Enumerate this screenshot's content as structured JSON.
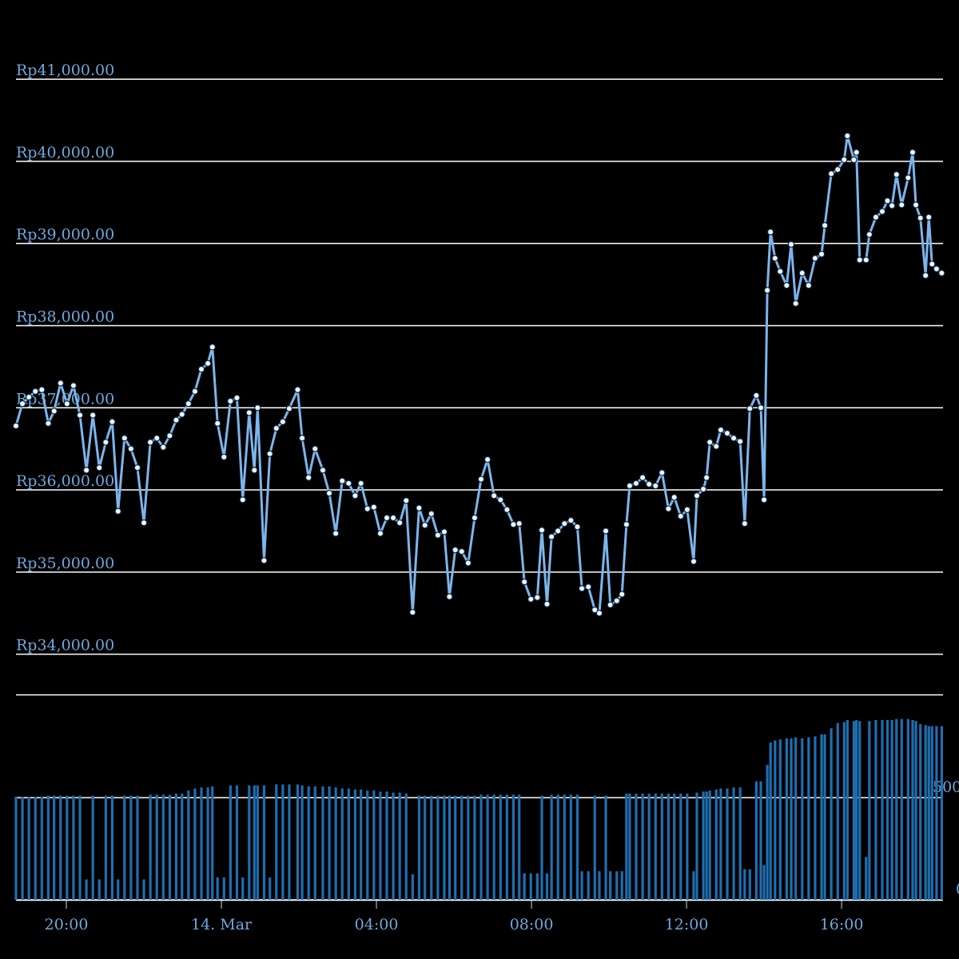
{
  "chart_data": [
    {
      "type": "line",
      "color": "#7cb5ec",
      "x": [
        1122,
        1132,
        1142,
        1152,
        1162,
        1172,
        1181,
        1191,
        1201,
        1211,
        1221,
        1231,
        1241,
        1251,
        1261,
        1271,
        1280,
        1290,
        1300,
        1310,
        1320,
        1330,
        1340,
        1350,
        1360,
        1370,
        1379,
        1389,
        1399,
        1409,
        1419,
        1426,
        1434,
        1444,
        1454,
        1464,
        1473,
        1483,
        1491,
        1496,
        1506,
        1515,
        1525,
        1535,
        1545,
        1558,
        1565,
        1575,
        1585,
        1597,
        1607,
        1617,
        1627,
        1637,
        1647,
        1656,
        1666,
        1676,
        1686,
        1696,
        1706,
        1716,
        1726,
        1736,
        1746,
        1755,
        1765,
        1775,
        1785,
        1793,
        1802,
        1812,
        1822,
        1832,
        1842,
        1852,
        1862,
        1872,
        1882,
        1892,
        1901,
        1909,
        1919,
        1929,
        1936,
        1944,
        1951,
        1961,
        1971,
        1981,
        1991,
        1998,
        2008,
        2018,
        2025,
        2035,
        2042,
        2052,
        2060,
        2067,
        2072,
        2082,
        2092,
        2102,
        2112,
        2122,
        2132,
        2141,
        2151,
        2161,
        2171,
        2176,
        2186,
        2191,
        2196,
        2206,
        2213,
        2223,
        2233,
        2243,
        2250,
        2258,
        2268,
        2275,
        2280,
        2285,
        2290,
        2297,
        2305,
        2315,
        2322,
        2329,
        2339,
        2349,
        2359,
        2369,
        2374,
        2384,
        2394,
        2404,
        2409,
        2419,
        2423,
        2428,
        2438,
        2443,
        2453,
        2463,
        2471,
        2478,
        2485,
        2493,
        2503,
        2510,
        2515,
        2522,
        2530,
        2535,
        2540,
        2547,
        2555
      ],
      "values": [
        36780,
        37050,
        37130,
        37200,
        37220,
        36810,
        36960,
        37300,
        37050,
        37270,
        36910,
        36240,
        36910,
        36270,
        36580,
        36830,
        35740,
        36630,
        36500,
        36270,
        35600,
        36580,
        36630,
        36520,
        36660,
        36850,
        36920,
        37050,
        37200,
        37470,
        37540,
        37740,
        36810,
        36400,
        37080,
        37120,
        35880,
        36940,
        36240,
        37000,
        35140,
        36440,
        36750,
        36830,
        36990,
        37220,
        36630,
        36150,
        36500,
        36240,
        35960,
        35470,
        36110,
        36080,
        35930,
        36080,
        35770,
        35790,
        35470,
        35660,
        35660,
        35600,
        35870,
        34510,
        35780,
        35570,
        35710,
        35450,
        35490,
        34700,
        35270,
        35250,
        35110,
        35660,
        36130,
        36370,
        35930,
        35880,
        35760,
        35580,
        35590,
        34880,
        34670,
        34690,
        35510,
        34610,
        35430,
        35500,
        35590,
        35630,
        35550,
        34800,
        34820,
        34540,
        34500,
        35500,
        34600,
        34650,
        34730,
        35580,
        36050,
        36080,
        36150,
        36070,
        36050,
        36210,
        35770,
        35910,
        35680,
        35760,
        35130,
        35930,
        36010,
        36150,
        36580,
        36530,
        36730,
        36690,
        36630,
        36590,
        35590,
        36990,
        37150,
        37000,
        35880,
        38430,
        39140,
        38820,
        38660,
        38490,
        38990,
        38270,
        38640,
        38490,
        38820,
        38870,
        39220,
        39850,
        39900,
        40020,
        40310,
        40020,
        40110,
        38800,
        38800,
        39110,
        39320,
        39390,
        39520,
        39460,
        39840,
        39470,
        39800,
        40110,
        39470,
        39310,
        38610,
        39320,
        38750,
        38690,
        38640
      ],
      "xlim": [
        1122,
        2557
      ],
      "ylim": [
        33500,
        41400
      ],
      "yticks": [
        {
          "value": 34000,
          "label": "Rp34,000.00"
        },
        {
          "value": 35000,
          "label": "Rp35,000.00"
        },
        {
          "value": 36000,
          "label": "Rp36,000.00"
        },
        {
          "value": 37000,
          "label": "Rp37,000.00"
        },
        {
          "value": 38000,
          "label": "Rp38,000.00"
        },
        {
          "value": 39000,
          "label": "Rp39,000.00"
        },
        {
          "value": 40000,
          "label": "Rp40,000.00"
        },
        {
          "value": 41000,
          "label": "Rp41,000.00"
        }
      ],
      "grid": true
    },
    {
      "type": "bar",
      "color": "#1f6eb0",
      "x": [
        1122,
        1132,
        1142,
        1152,
        1162,
        1172,
        1181,
        1191,
        1201,
        1211,
        1221,
        1231,
        1241,
        1251,
        1261,
        1271,
        1280,
        1290,
        1300,
        1310,
        1320,
        1330,
        1340,
        1350,
        1360,
        1370,
        1379,
        1389,
        1399,
        1409,
        1419,
        1426,
        1434,
        1444,
        1454,
        1464,
        1473,
        1483,
        1491,
        1496,
        1506,
        1515,
        1525,
        1535,
        1545,
        1558,
        1565,
        1575,
        1585,
        1597,
        1607,
        1617,
        1627,
        1637,
        1647,
        1656,
        1666,
        1676,
        1686,
        1696,
        1706,
        1716,
        1726,
        1736,
        1746,
        1755,
        1765,
        1775,
        1785,
        1793,
        1802,
        1812,
        1822,
        1832,
        1842,
        1852,
        1862,
        1872,
        1882,
        1892,
        1901,
        1909,
        1919,
        1929,
        1936,
        1944,
        1951,
        1961,
        1971,
        1981,
        1991,
        1998,
        2008,
        2018,
        2025,
        2035,
        2042,
        2052,
        2060,
        2067,
        2072,
        2082,
        2092,
        2102,
        2112,
        2122,
        2132,
        2141,
        2151,
        2161,
        2171,
        2176,
        2186,
        2191,
        2196,
        2206,
        2213,
        2223,
        2233,
        2243,
        2250,
        2258,
        2268,
        2275,
        2280,
        2285,
        2290,
        2297,
        2305,
        2315,
        2322,
        2329,
        2339,
        2349,
        2359,
        2369,
        2374,
        2384,
        2394,
        2404,
        2409,
        2419,
        2423,
        2428,
        2438,
        2443,
        2453,
        2463,
        2471,
        2478,
        2485,
        2493,
        2503,
        2510,
        2515,
        2522,
        2530,
        2535,
        2540,
        2547,
        2555
      ],
      "values": [
        505,
        505,
        505,
        505,
        505,
        510,
        510,
        510,
        510,
        510,
        510,
        100,
        510,
        100,
        510,
        510,
        100,
        510,
        510,
        510,
        100,
        515,
        515,
        515,
        515,
        520,
        520,
        535,
        545,
        550,
        550,
        555,
        110,
        110,
        560,
        560,
        110,
        560,
        560,
        560,
        560,
        110,
        565,
        565,
        565,
        565,
        560,
        555,
        555,
        555,
        555,
        550,
        545,
        545,
        540,
        540,
        535,
        535,
        530,
        530,
        525,
        525,
        520,
        125,
        510,
        510,
        510,
        510,
        510,
        510,
        510,
        510,
        510,
        510,
        515,
        515,
        515,
        515,
        515,
        515,
        515,
        130,
        130,
        130,
        510,
        130,
        515,
        515,
        515,
        515,
        515,
        140,
        140,
        510,
        140,
        510,
        140,
        140,
        140,
        520,
        520,
        520,
        520,
        520,
        520,
        520,
        520,
        520,
        520,
        520,
        140,
        525,
        530,
        530,
        535,
        540,
        545,
        545,
        550,
        550,
        150,
        150,
        580,
        580,
        170,
        660,
        770,
        780,
        785,
        790,
        790,
        795,
        790,
        795,
        800,
        810,
        810,
        840,
        865,
        870,
        880,
        875,
        880,
        875,
        210,
        875,
        880,
        880,
        880,
        880,
        885,
        885,
        885,
        880,
        875,
        860,
        855,
        850,
        850,
        850,
        850
      ],
      "xlim": [
        1122,
        2557
      ],
      "ylim": [
        0,
        1005
      ],
      "yticks": [
        0,
        500
      ],
      "xticks": [
        {
          "value": 1200,
          "label": "20:00"
        },
        {
          "value": 1440,
          "label": "14. Mar"
        },
        {
          "value": 1680,
          "label": "04:00"
        },
        {
          "value": 1920,
          "label": "08:00"
        },
        {
          "value": 2160,
          "label": "12:00"
        },
        {
          "value": 2400,
          "label": "16:00"
        }
      ],
      "grid": true
    }
  ]
}
